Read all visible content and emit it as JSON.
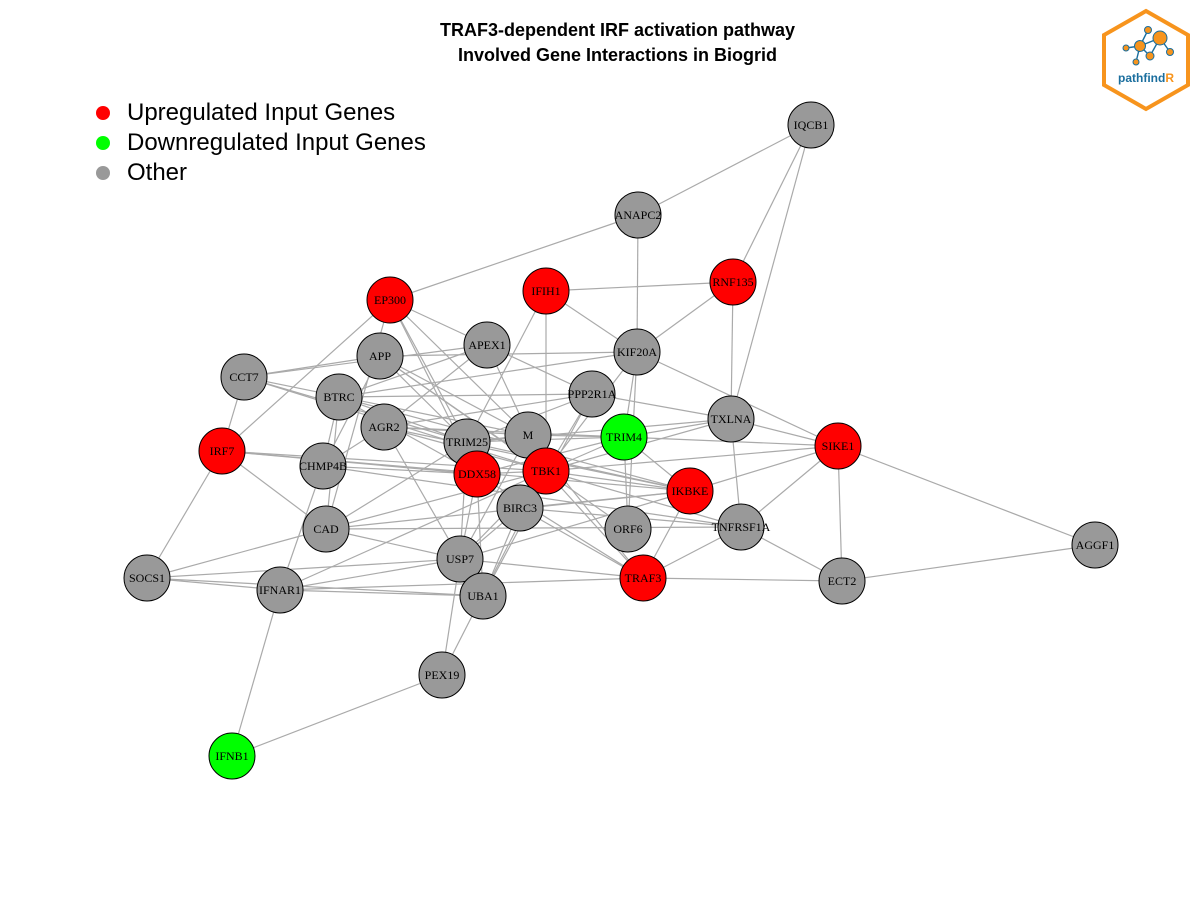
{
  "title": {
    "line1": "TRAF3-dependent IRF activation pathway",
    "line2": "Involved Gene Interactions in Biogrid"
  },
  "legend": [
    {
      "label": "Upregulated Input Genes",
      "color": "#ff0000"
    },
    {
      "label": "Downregulated Input Genes",
      "color": "#00ff00"
    },
    {
      "label": "Other",
      "color": "#999999"
    }
  ],
  "logo": {
    "text_dark": "pathfind",
    "text_accent": "R"
  },
  "colors": {
    "up": "#ff0000",
    "down": "#00ff00",
    "other": "#999999",
    "edge": "#aaaaaa",
    "logo_orange": "#f7941d",
    "logo_blue": "#1a6e9e"
  },
  "nodes": [
    {
      "id": "IQCB1",
      "status": "other"
    },
    {
      "id": "ANAPC2",
      "status": "other"
    },
    {
      "id": "RNF135",
      "status": "up"
    },
    {
      "id": "IFIH1",
      "status": "up"
    },
    {
      "id": "EP300",
      "status": "up"
    },
    {
      "id": "APEX1",
      "status": "other"
    },
    {
      "id": "APP",
      "status": "other"
    },
    {
      "id": "KIF20A",
      "status": "other"
    },
    {
      "id": "CCT7",
      "status": "other"
    },
    {
      "id": "BTRC",
      "status": "other"
    },
    {
      "id": "PPP2R1A",
      "status": "other"
    },
    {
      "id": "AGR2",
      "status": "other"
    },
    {
      "id": "TXLNA",
      "status": "other"
    },
    {
      "id": "M",
      "status": "other"
    },
    {
      "id": "TRIM25",
      "status": "other"
    },
    {
      "id": "TRIM4",
      "status": "down"
    },
    {
      "id": "SIKE1",
      "status": "up"
    },
    {
      "id": "IRF7",
      "status": "up"
    },
    {
      "id": "CHMP4B",
      "status": "other"
    },
    {
      "id": "DDX58",
      "status": "up"
    },
    {
      "id": "TBK1",
      "status": "up"
    },
    {
      "id": "IKBKE",
      "status": "up"
    },
    {
      "id": "BIRC3",
      "status": "other"
    },
    {
      "id": "ORF6",
      "status": "other"
    },
    {
      "id": "TNFRSF1A",
      "status": "other"
    },
    {
      "id": "CAD",
      "status": "other"
    },
    {
      "id": "AGGF1",
      "status": "other"
    },
    {
      "id": "USP7",
      "status": "other"
    },
    {
      "id": "SOCS1",
      "status": "other"
    },
    {
      "id": "IFNAR1",
      "status": "other"
    },
    {
      "id": "TRAF3",
      "status": "up"
    },
    {
      "id": "ECT2",
      "status": "other"
    },
    {
      "id": "UBA1",
      "status": "other"
    },
    {
      "id": "PEX19",
      "status": "other"
    },
    {
      "id": "IFNB1",
      "status": "down"
    }
  ],
  "edges": [
    [
      "IQCB1",
      "ANAPC2"
    ],
    [
      "IQCB1",
      "RNF135"
    ],
    [
      "IQCB1",
      "TXLNA"
    ],
    [
      "ANAPC2",
      "EP300"
    ],
    [
      "ANAPC2",
      "KIF20A"
    ],
    [
      "RNF135",
      "IFIH1"
    ],
    [
      "RNF135",
      "KIF20A"
    ],
    [
      "RNF135",
      "TXLNA"
    ],
    [
      "IFIH1",
      "KIF20A"
    ],
    [
      "IFIH1",
      "TBK1"
    ],
    [
      "IFIH1",
      "TRIM25"
    ],
    [
      "EP300",
      "APEX1"
    ],
    [
      "EP300",
      "IRF7"
    ],
    [
      "EP300",
      "TRIM25"
    ],
    [
      "EP300",
      "M"
    ],
    [
      "EP300",
      "CAD"
    ],
    [
      "EP300",
      "DDX58"
    ],
    [
      "APEX1",
      "CCT7"
    ],
    [
      "APEX1",
      "BTRC"
    ],
    [
      "APEX1",
      "PPP2R1A"
    ],
    [
      "APEX1",
      "TBK1"
    ],
    [
      "APEX1",
      "AGR2"
    ],
    [
      "APP",
      "CCT7"
    ],
    [
      "APP",
      "KIF20A"
    ],
    [
      "APP",
      "TRIM25"
    ],
    [
      "APP",
      "TBK1"
    ],
    [
      "APP",
      "ORF6"
    ],
    [
      "APP",
      "CHMP4B"
    ],
    [
      "APP",
      "M"
    ],
    [
      "KIF20A",
      "TRIM4"
    ],
    [
      "KIF20A",
      "BTRC"
    ],
    [
      "KIF20A",
      "TBK1"
    ],
    [
      "KIF20A",
      "ORF6"
    ],
    [
      "KIF20A",
      "SIKE1"
    ],
    [
      "CCT7",
      "IRF7"
    ],
    [
      "CCT7",
      "TRIM25"
    ],
    [
      "CCT7",
      "TBK1"
    ],
    [
      "CCT7",
      "M"
    ],
    [
      "BTRC",
      "PPP2R1A"
    ],
    [
      "BTRC",
      "DDX58"
    ],
    [
      "BTRC",
      "TRIM25"
    ],
    [
      "BTRC",
      "IKBKE"
    ],
    [
      "BTRC",
      "CAD"
    ],
    [
      "BTRC",
      "CHMP4B"
    ],
    [
      "PPP2R1A",
      "TBK1"
    ],
    [
      "PPP2R1A",
      "AGR2"
    ],
    [
      "PPP2R1A",
      "UBA1"
    ],
    [
      "PPP2R1A",
      "TRIM25"
    ],
    [
      "PPP2R1A",
      "TXLNA"
    ],
    [
      "AGR2",
      "M"
    ],
    [
      "AGR2",
      "TBK1"
    ],
    [
      "AGR2",
      "IKBKE"
    ],
    [
      "AGR2",
      "USP7"
    ],
    [
      "AGR2",
      "TRIM4"
    ],
    [
      "AGR2",
      "CHMP4B"
    ],
    [
      "TXLNA",
      "TRIM4"
    ],
    [
      "TXLNA",
      "TBK1"
    ],
    [
      "TXLNA",
      "SIKE1"
    ],
    [
      "TXLNA",
      "TRIM25"
    ],
    [
      "TXLNA",
      "TNFRSF1A"
    ],
    [
      "M",
      "TRIM4"
    ],
    [
      "M",
      "TRIM25"
    ],
    [
      "M",
      "USP7"
    ],
    [
      "M",
      "TRAF3"
    ],
    [
      "M",
      "TBK1"
    ],
    [
      "TRIM25",
      "DDX58"
    ],
    [
      "TRIM25",
      "TRIM4"
    ],
    [
      "TRIM25",
      "USP7"
    ],
    [
      "TRIM25",
      "IKBKE"
    ],
    [
      "TRIM25",
      "CAD"
    ],
    [
      "TRIM4",
      "TBK1"
    ],
    [
      "TRIM4",
      "DDX58"
    ],
    [
      "TRIM4",
      "ORF6"
    ],
    [
      "TRIM4",
      "IKBKE"
    ],
    [
      "SIKE1",
      "TBK1"
    ],
    [
      "SIKE1",
      "IKBKE"
    ],
    [
      "SIKE1",
      "TRIM4"
    ],
    [
      "SIKE1",
      "AGGF1"
    ],
    [
      "SIKE1",
      "ECT2"
    ],
    [
      "SIKE1",
      "TNFRSF1A"
    ],
    [
      "IRF7",
      "TBK1"
    ],
    [
      "IRF7",
      "IKBKE"
    ],
    [
      "IRF7",
      "CAD"
    ],
    [
      "IRF7",
      "SOCS1"
    ],
    [
      "IRF7",
      "DDX58"
    ],
    [
      "CHMP4B",
      "DDX58"
    ],
    [
      "CHMP4B",
      "IFNAR1"
    ],
    [
      "CHMP4B",
      "TNFRSF1A"
    ],
    [
      "DDX58",
      "TBK1"
    ],
    [
      "DDX58",
      "USP7"
    ],
    [
      "DDX58",
      "TRAF3"
    ],
    [
      "DDX58",
      "UBA1"
    ],
    [
      "TBK1",
      "IKBKE"
    ],
    [
      "TBK1",
      "BIRC3"
    ],
    [
      "TBK1",
      "TRAF3"
    ],
    [
      "TBK1",
      "CAD"
    ],
    [
      "TBK1",
      "IFNAR1"
    ],
    [
      "TBK1",
      "USP7"
    ],
    [
      "TBK1",
      "TNFRSF1A"
    ],
    [
      "IKBKE",
      "TRAF3"
    ],
    [
      "IKBKE",
      "BIRC3"
    ],
    [
      "IKBKE",
      "USP7"
    ],
    [
      "IKBKE",
      "CAD"
    ],
    [
      "BIRC3",
      "TNFRSF1A"
    ],
    [
      "BIRC3",
      "USP7"
    ],
    [
      "BIRC3",
      "TRAF3"
    ],
    [
      "BIRC3",
      "UBA1"
    ],
    [
      "TNFRSF1A",
      "TRAF3"
    ],
    [
      "TNFRSF1A",
      "ECT2"
    ],
    [
      "TNFRSF1A",
      "CAD"
    ],
    [
      "CAD",
      "SOCS1"
    ],
    [
      "CAD",
      "USP7"
    ],
    [
      "AGGF1",
      "ECT2"
    ],
    [
      "USP7",
      "SOCS1"
    ],
    [
      "USP7",
      "IFNAR1"
    ],
    [
      "USP7",
      "PEX19"
    ],
    [
      "USP7",
      "TRAF3"
    ],
    [
      "SOCS1",
      "IFNAR1"
    ],
    [
      "SOCS1",
      "UBA1"
    ],
    [
      "IFNAR1",
      "IFNB1"
    ],
    [
      "IFNAR1",
      "UBA1"
    ],
    [
      "TRAF3",
      "ECT2"
    ],
    [
      "TRAF3",
      "IFNAR1"
    ],
    [
      "PEX19",
      "IFNB1"
    ],
    [
      "PEX19",
      "TBK1"
    ]
  ]
}
